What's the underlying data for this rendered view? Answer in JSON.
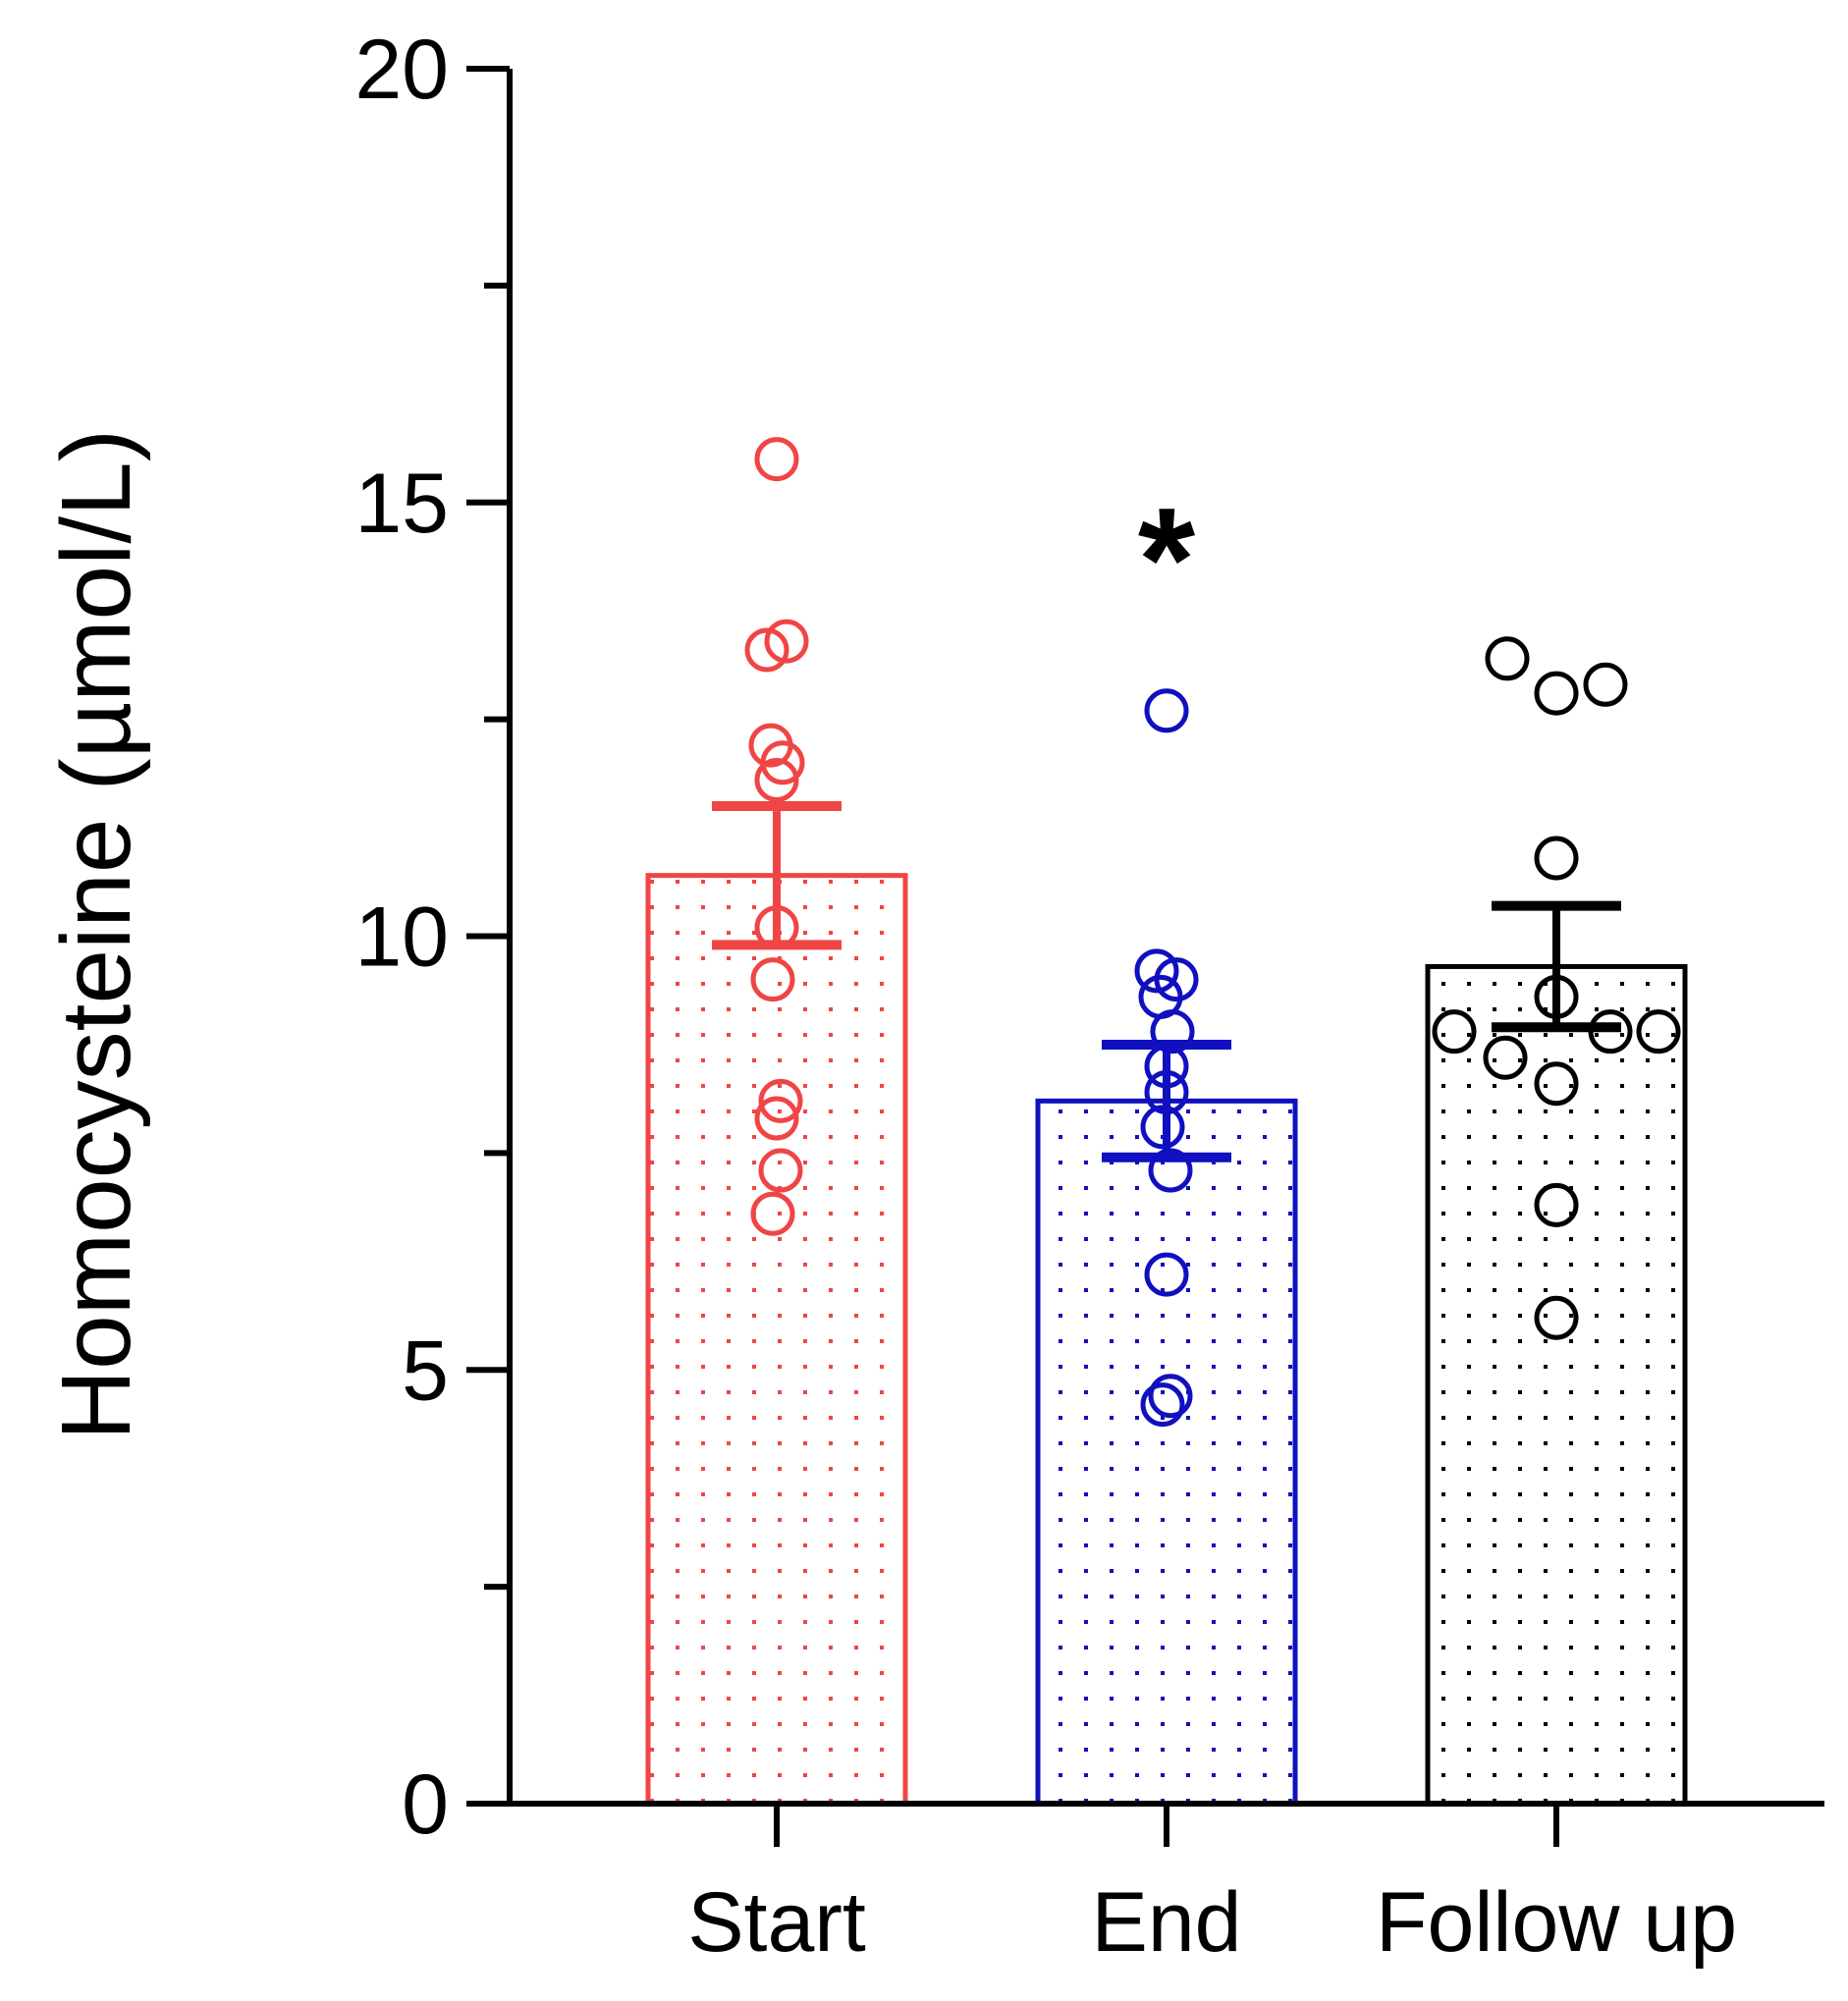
{
  "chart_data": {
    "type": "bar",
    "title": "",
    "xlabel": "",
    "ylabel": "Homocysteine (µmol/L)",
    "ylim": [
      0,
      20
    ],
    "y_major_ticks": [
      0,
      5,
      10,
      15,
      20
    ],
    "y_tick_labels": [
      "0",
      "5",
      "10",
      "15",
      "20"
    ],
    "y_minor_ticks": [
      2.5,
      7.5,
      12.5,
      17.5
    ],
    "grid": false,
    "legend": "none",
    "bar_fill_pattern": "dotted",
    "categories": [
      "Start",
      "End",
      "Follow up"
    ],
    "values": [
      10.7,
      8.1,
      9.65
    ],
    "error_sem": [
      0.8,
      0.65,
      0.7
    ],
    "colors": [
      "#f04545",
      "#1010c0",
      "#000000"
    ],
    "points": [
      [
        15.5,
        13.3,
        13.4,
        12.2,
        12.0,
        11.8,
        10.1,
        9.5,
        8.1,
        7.9,
        7.3,
        6.8
      ],
      [
        12.6,
        9.6,
        9.5,
        9.3,
        8.9,
        8.5,
        8.2,
        7.8,
        7.3,
        6.1,
        4.7,
        4.6
      ],
      [
        13.2,
        12.9,
        12.8,
        10.9,
        9.3,
        8.9,
        8.9,
        8.9,
        8.6,
        8.3,
        6.9,
        5.6
      ]
    ],
    "annotations": [
      {
        "category": "End",
        "text": "*",
        "y": 14.55
      }
    ]
  }
}
